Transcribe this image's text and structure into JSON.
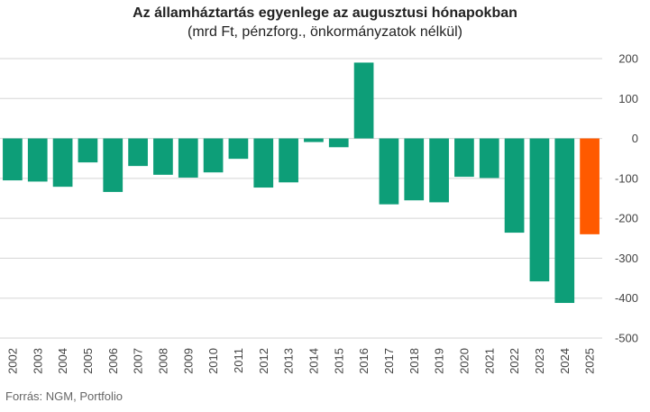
{
  "chart_data": {
    "type": "bar",
    "title": "Az államháztartás egyenlege az augusztusi hónapokban",
    "subtitle": "(mrd Ft, pénzforg., önkormányzatok nélkül)",
    "source": "Forrás: NGM, Portfolio",
    "categories": [
      "2002",
      "2003",
      "2004",
      "2005",
      "2006",
      "2007",
      "2008",
      "2009",
      "2010",
      "2011",
      "2012",
      "2013",
      "2014",
      "2015",
      "2016",
      "2017",
      "2018",
      "2019",
      "2020",
      "2021",
      "2022",
      "2023",
      "2024",
      "2025"
    ],
    "values": [
      -105,
      -108,
      -121,
      -60,
      -134,
      -69,
      -91,
      -98,
      -85,
      -51,
      -123,
      -110,
      -9,
      -22,
      190,
      -165,
      -155,
      -160,
      -96,
      -99,
      -236,
      -358,
      -412,
      -240
    ],
    "colors": {
      "default": "#0d9e78",
      "highlight": "#ff5a00",
      "grid": "#d5d5d5"
    },
    "highlight_index": 23,
    "ylim": [
      -500,
      200
    ],
    "yticks": [
      200,
      100,
      0,
      -100,
      -200,
      -300,
      -400,
      -500
    ],
    "ytick_labels": [
      "200",
      "100",
      "0",
      "-100",
      "-200",
      "-300",
      "-400",
      "-500"
    ],
    "y_axis_position": "right",
    "grid": true,
    "xlabel": "",
    "ylabel": ""
  }
}
